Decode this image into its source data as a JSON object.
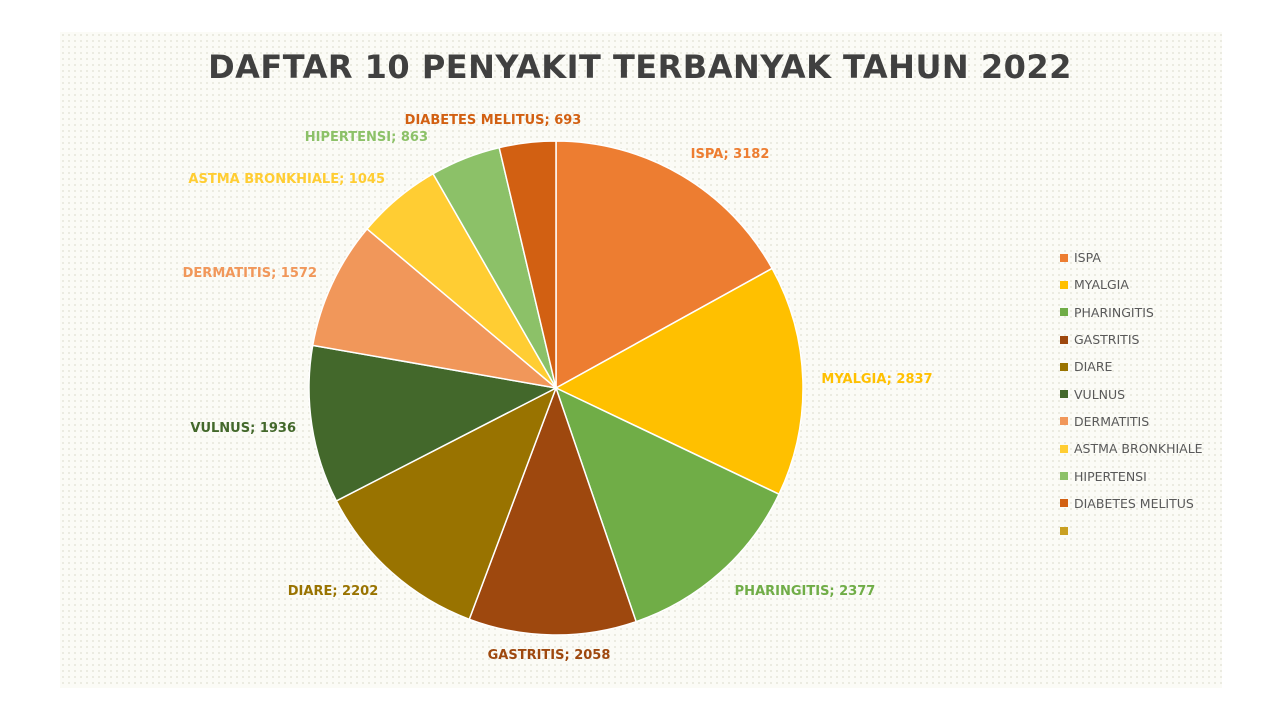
{
  "chart_data": {
    "type": "pie",
    "title": "DAFTAR 10 PENYAKIT TERBANYAK TAHUN 2022",
    "categories": [
      "ISPA",
      "MYALGIA",
      "PHARINGITIS",
      "GASTRITIS",
      "DIARE",
      "VULNUS",
      "DERMATITIS",
      "ASTMA BRONKHIALE",
      "HIPERTENSI",
      "DIABETES MELITUS"
    ],
    "values": [
      3182,
      2837,
      2377,
      2058,
      2202,
      1936,
      1572,
      1045,
      863,
      693
    ],
    "data_labels": [
      "ISPA; 3182",
      "MYALGIA; 2837",
      "PHARINGITIS; 2377",
      "GASTRITIS; 2058",
      "DIARE; 2202",
      "VULNUS; 1936",
      "DERMATITIS; 1572",
      "ASTMA BRONKHIALE; 1045",
      "HIPERTENSI; 863",
      "DIABETES MELITUS; 693"
    ],
    "colors": [
      "#ED7D31",
      "#FFC000",
      "#70AD47",
      "#9E480E",
      "#997300",
      "#43682B",
      "#F1975A",
      "#FFCD33",
      "#8CC168",
      "#D26012"
    ],
    "label_colors": [
      "#ED7D31",
      "#FFC000",
      "#70AD47",
      "#9E480E",
      "#997300",
      "#43682B",
      "#F1975A",
      "#FFCD33",
      "#8CC168",
      "#D26012"
    ],
    "legend": {
      "position": "right",
      "entries": [
        "ISPA",
        "MYALGIA",
        "PHARINGITIS",
        "GASTRITIS",
        "DIARE",
        "VULNUS",
        "DERMATITIS",
        "ASTMA BRONKHIALE",
        "HIPERTENSI",
        "DIABETES MELITUS",
        ""
      ],
      "colors": [
        "#ED7D31",
        "#FFC000",
        "#70AD47",
        "#9E480E",
        "#997300",
        "#43682B",
        "#F1975A",
        "#FFCD33",
        "#8CC168",
        "#D26012",
        "#C9A022"
      ]
    }
  }
}
